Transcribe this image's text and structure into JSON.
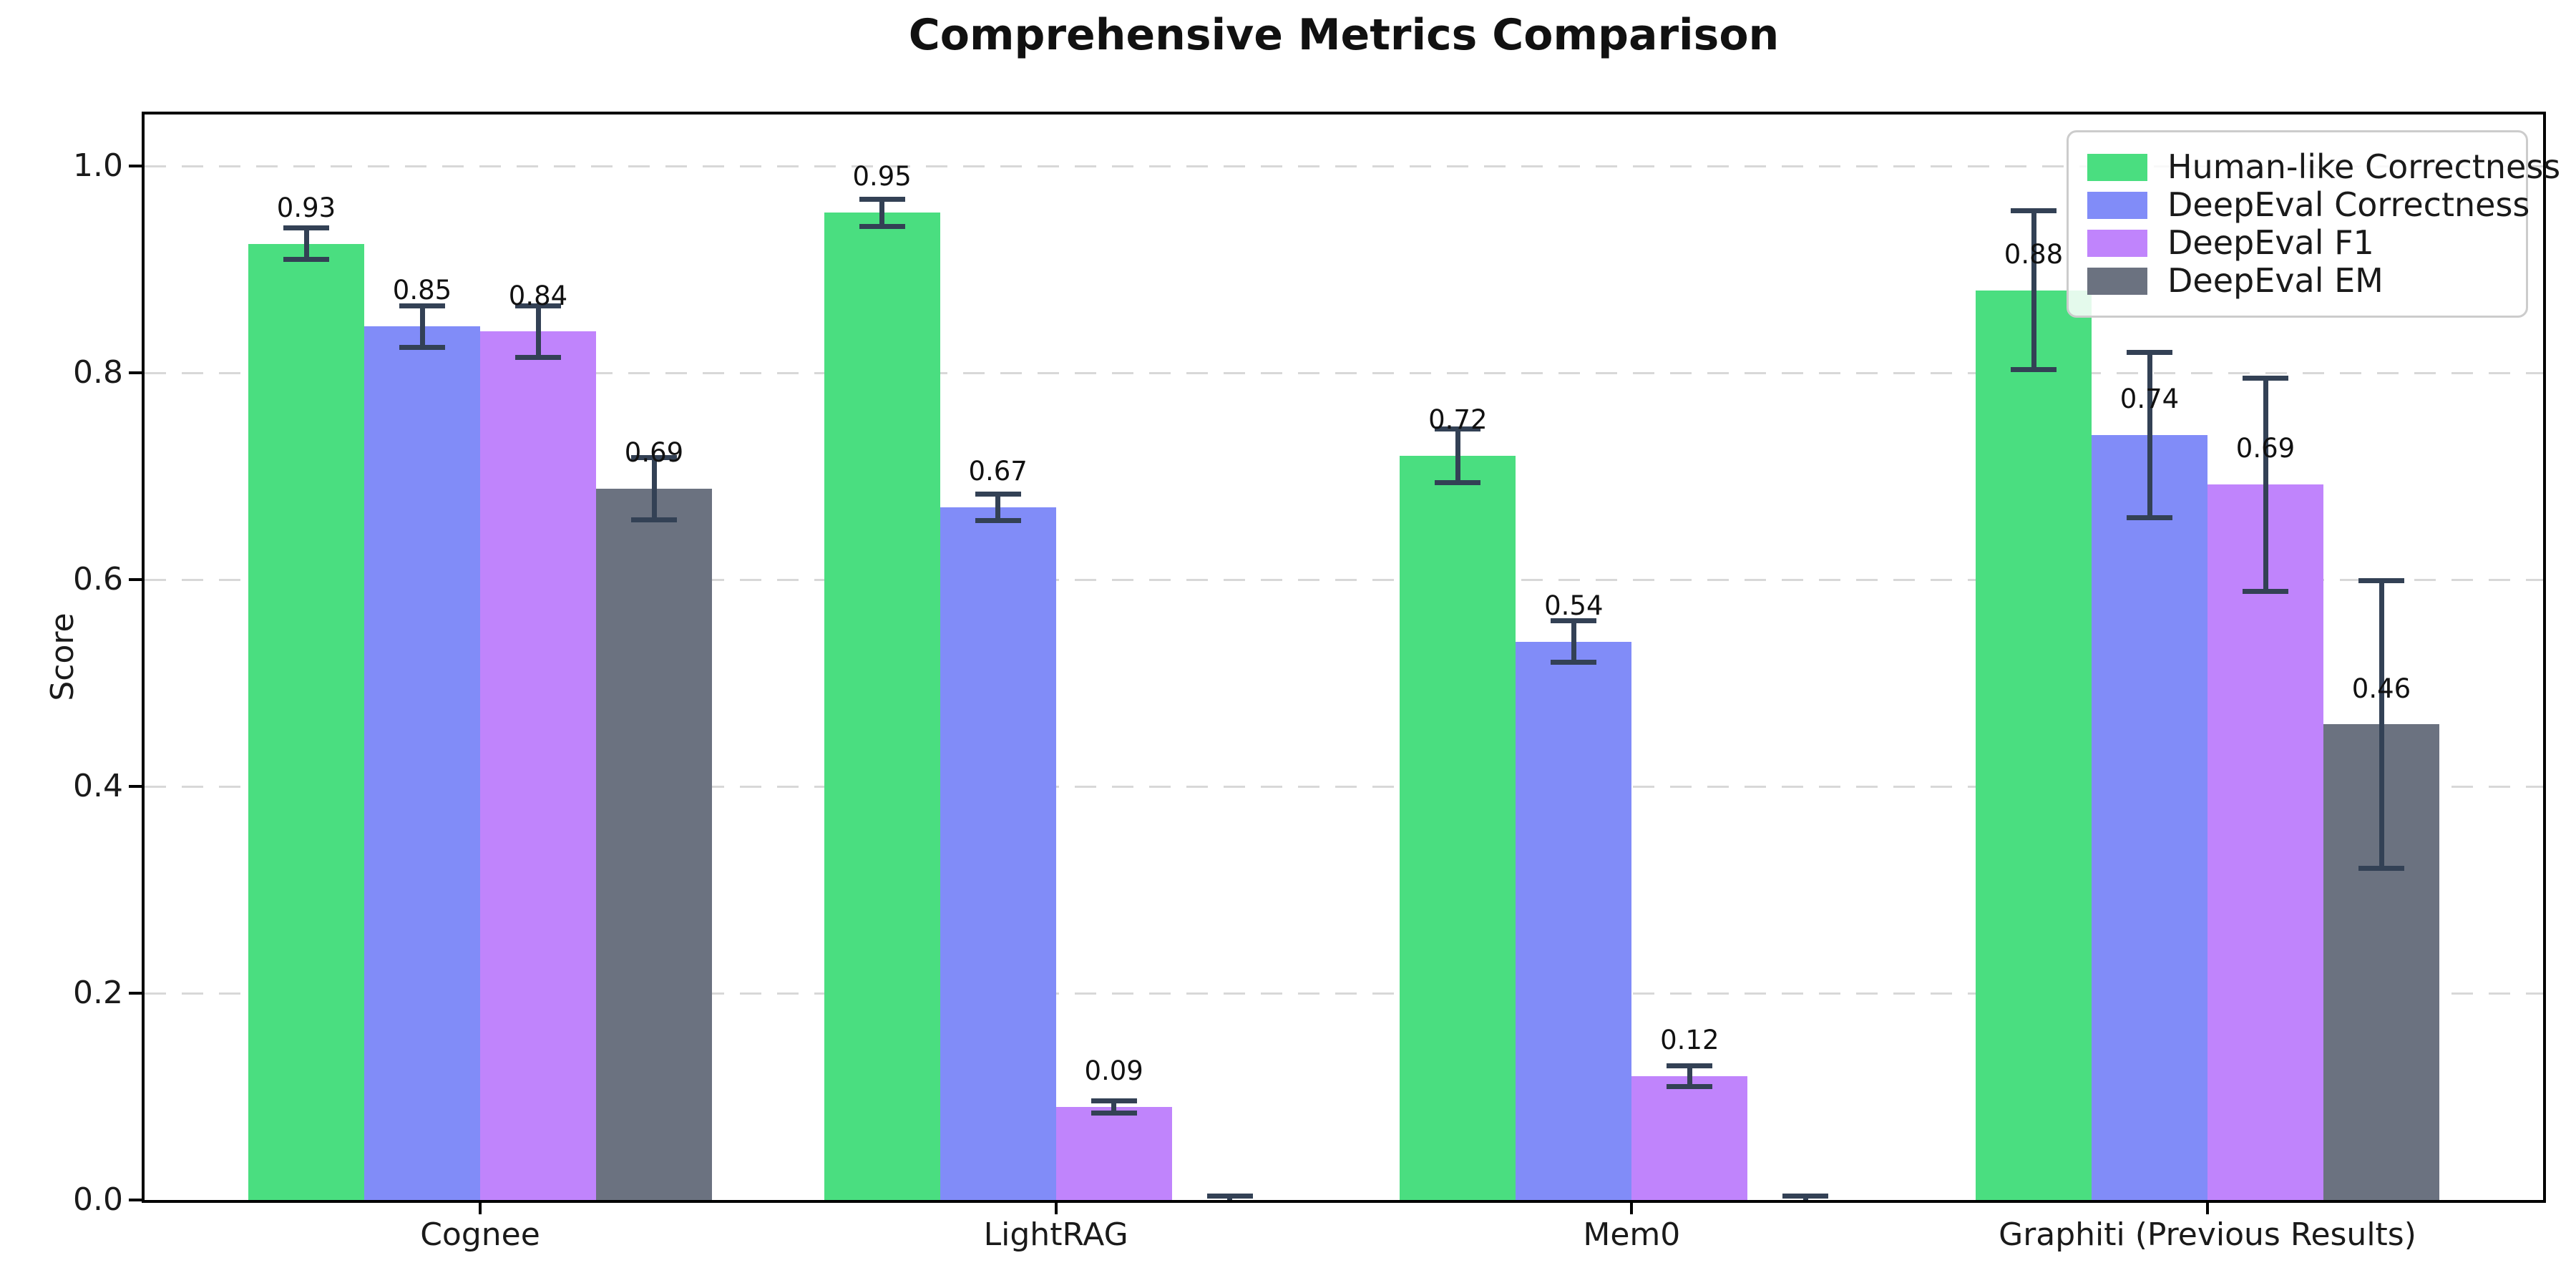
{
  "title": "Comprehensive Metrics Comparison",
  "chart_data": {
    "type": "bar",
    "title": "Comprehensive Metrics Comparison",
    "xlabel": "",
    "ylabel": "Score",
    "categories": [
      "Cognee",
      "LightRAG",
      "Mem0",
      "Graphiti (Previous Results)"
    ],
    "series": [
      {
        "name": "Human-like Correctness",
        "color": "#4ade80",
        "values": [
          0.925,
          0.955,
          0.72,
          0.88
        ],
        "errors": [
          0.015,
          0.013,
          0.026,
          0.077
        ],
        "labels": [
          "0.93",
          "0.95",
          "0.72",
          "0.88"
        ]
      },
      {
        "name": "DeepEval Correctness",
        "color": "#818cf8",
        "values": [
          0.845,
          0.67,
          0.54,
          0.74
        ],
        "errors": [
          0.02,
          0.013,
          0.02,
          0.08
        ],
        "labels": [
          "0.85",
          "0.67",
          "0.54",
          "0.74"
        ]
      },
      {
        "name": "DeepEval F1",
        "color": "#c084fc",
        "values": [
          0.84,
          0.09,
          0.12,
          0.692
        ],
        "errors": [
          0.025,
          0.006,
          0.01,
          0.103
        ],
        "labels": [
          "0.84",
          "0.09",
          "0.12",
          "0.69"
        ]
      },
      {
        "name": "DeepEval EM",
        "color": "#6b7280",
        "values": [
          0.688,
          0.0,
          0.0,
          0.46
        ],
        "errors": [
          0.03,
          0.004,
          0.004,
          0.139
        ],
        "labels": [
          "0.69",
          null,
          null,
          "0.46"
        ]
      }
    ],
    "ylim": [
      0,
      1.05
    ],
    "yticks": [
      0.0,
      0.2,
      0.4,
      0.6,
      0.8,
      1.0
    ],
    "ytick_labels": [
      "0.0",
      "0.2",
      "0.4",
      "0.6",
      "0.8",
      "1.0"
    ],
    "grid": "horizontal-dashed",
    "legend_position": "upper-right",
    "value_label_offset": 0.02
  },
  "colors": {
    "errorbar": "#334155",
    "grid": "#d8d8d8",
    "spine": "#000000",
    "text": "#1a1a1a",
    "legend_border": "#cccccc",
    "legend_bg": "rgba(255,255,255,0.85)"
  }
}
